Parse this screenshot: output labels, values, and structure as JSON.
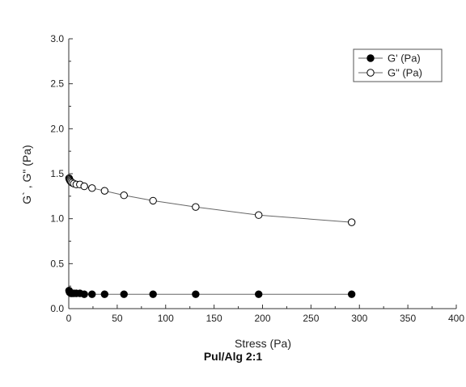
{
  "caption": "Pul/Alg 2:1",
  "chart_data": {
    "type": "scatter",
    "xlabel": "Stress (Pa)",
    "ylabel": "G` , G\" (Pa)",
    "xlim": [
      0,
      400
    ],
    "ylim": [
      0,
      3.0
    ],
    "xticks": [
      0,
      50,
      100,
      150,
      200,
      250,
      300,
      350,
      400
    ],
    "yticks": [
      0.0,
      0.5,
      1.0,
      1.5,
      2.0,
      2.5,
      3.0
    ],
    "xtick_labels": [
      "0",
      "50",
      "100",
      "150",
      "200",
      "250",
      "300",
      "350",
      "400"
    ],
    "ytick_labels": [
      "0.0",
      "0.5",
      "1.0",
      "1.5",
      "2.0",
      "2.5",
      "3.0"
    ],
    "grid": false,
    "legend_position": "top-right",
    "series": [
      {
        "name": "G' (Pa)",
        "marker": "filled-circle",
        "color": "#000000",
        "x": [
          0.3,
          0.6,
          1.0,
          1.5,
          2.3,
          3.5,
          5.2,
          7.8,
          11.5,
          16.0,
          24.0,
          37.0,
          57.0,
          87.0,
          131.0,
          196.0,
          292.0
        ],
        "y": [
          0.2,
          0.19,
          0.18,
          0.18,
          0.17,
          0.17,
          0.17,
          0.17,
          0.17,
          0.16,
          0.16,
          0.16,
          0.16,
          0.16,
          0.16,
          0.16,
          0.16
        ]
      },
      {
        "name": "G\" (Pa)",
        "marker": "open-circle",
        "color": "#000000",
        "x": [
          0.3,
          0.6,
          1.0,
          1.5,
          2.3,
          3.5,
          5.2,
          7.8,
          11.5,
          16.0,
          24.0,
          37.0,
          57.0,
          87.0,
          131.0,
          196.0,
          292.0
        ],
        "y": [
          1.45,
          1.44,
          1.43,
          1.42,
          1.41,
          1.4,
          1.39,
          1.38,
          1.38,
          1.36,
          1.34,
          1.31,
          1.26,
          1.2,
          1.13,
          1.04,
          0.96
        ]
      }
    ]
  }
}
